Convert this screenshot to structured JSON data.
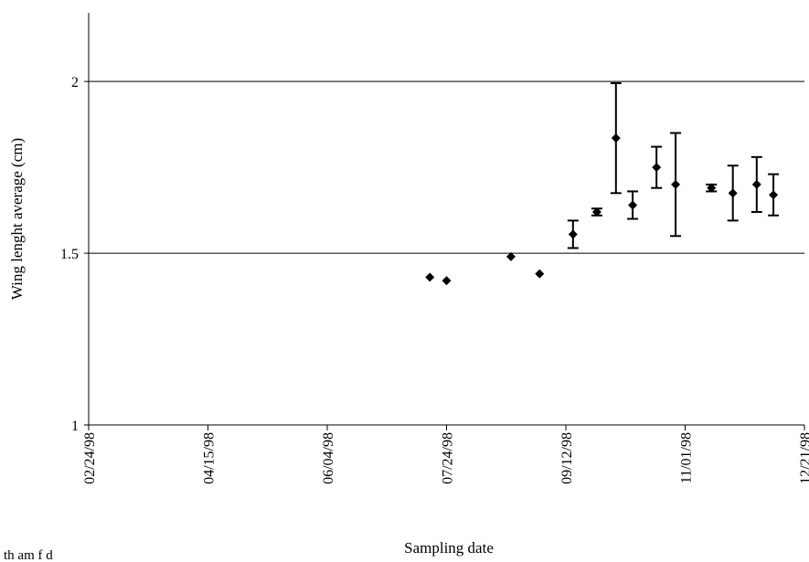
{
  "chart_data": {
    "type": "scatter",
    "title": "",
    "xlabel": "Sampling date",
    "ylabel": "Wing lenght average (cm)",
    "x_tick_labels": [
      "02/24/98",
      "04/15/98",
      "06/04/98",
      "07/24/98",
      "09/12/98",
      "11/01/98",
      "12/21/98"
    ],
    "y_tick_labels": [
      "1",
      "1.5",
      "2"
    ],
    "ylim": [
      1,
      2.2
    ],
    "xlim": [
      "02/24/98",
      "12/21/98"
    ],
    "grid": "horizontal lines at 1.5 and 2",
    "legend": "none",
    "marker": "diamond",
    "color": "#000000",
    "series": [
      {
        "points": [
          {
            "x": "07/17/98",
            "y": 1.43,
            "err": 0
          },
          {
            "x": "07/24/98",
            "y": 1.42,
            "err": 0
          },
          {
            "x": "08/20/98",
            "y": 1.49,
            "err": 0
          },
          {
            "x": "09/01/98",
            "y": 1.44,
            "err": 0
          },
          {
            "x": "09/15/98",
            "y": 1.555,
            "err": 0.04
          },
          {
            "x": "09/25/98",
            "y": 1.62,
            "err": 0.01
          },
          {
            "x": "10/03/98",
            "y": 1.835,
            "err": 0.16
          },
          {
            "x": "10/10/98",
            "y": 1.64,
            "err": 0.04
          },
          {
            "x": "10/20/98",
            "y": 1.75,
            "err": 0.06
          },
          {
            "x": "10/28/98",
            "y": 1.7,
            "err": 0.15
          },
          {
            "x": "11/12/98",
            "y": 1.69,
            "err": 0.01
          },
          {
            "x": "11/21/98",
            "y": 1.675,
            "err": 0.08
          },
          {
            "x": "12/01/98",
            "y": 1.7,
            "err": 0.08
          },
          {
            "x": "12/08/98",
            "y": 1.67,
            "err": 0.06
          }
        ]
      }
    ]
  },
  "footer_fragment": "th   am   f    d"
}
